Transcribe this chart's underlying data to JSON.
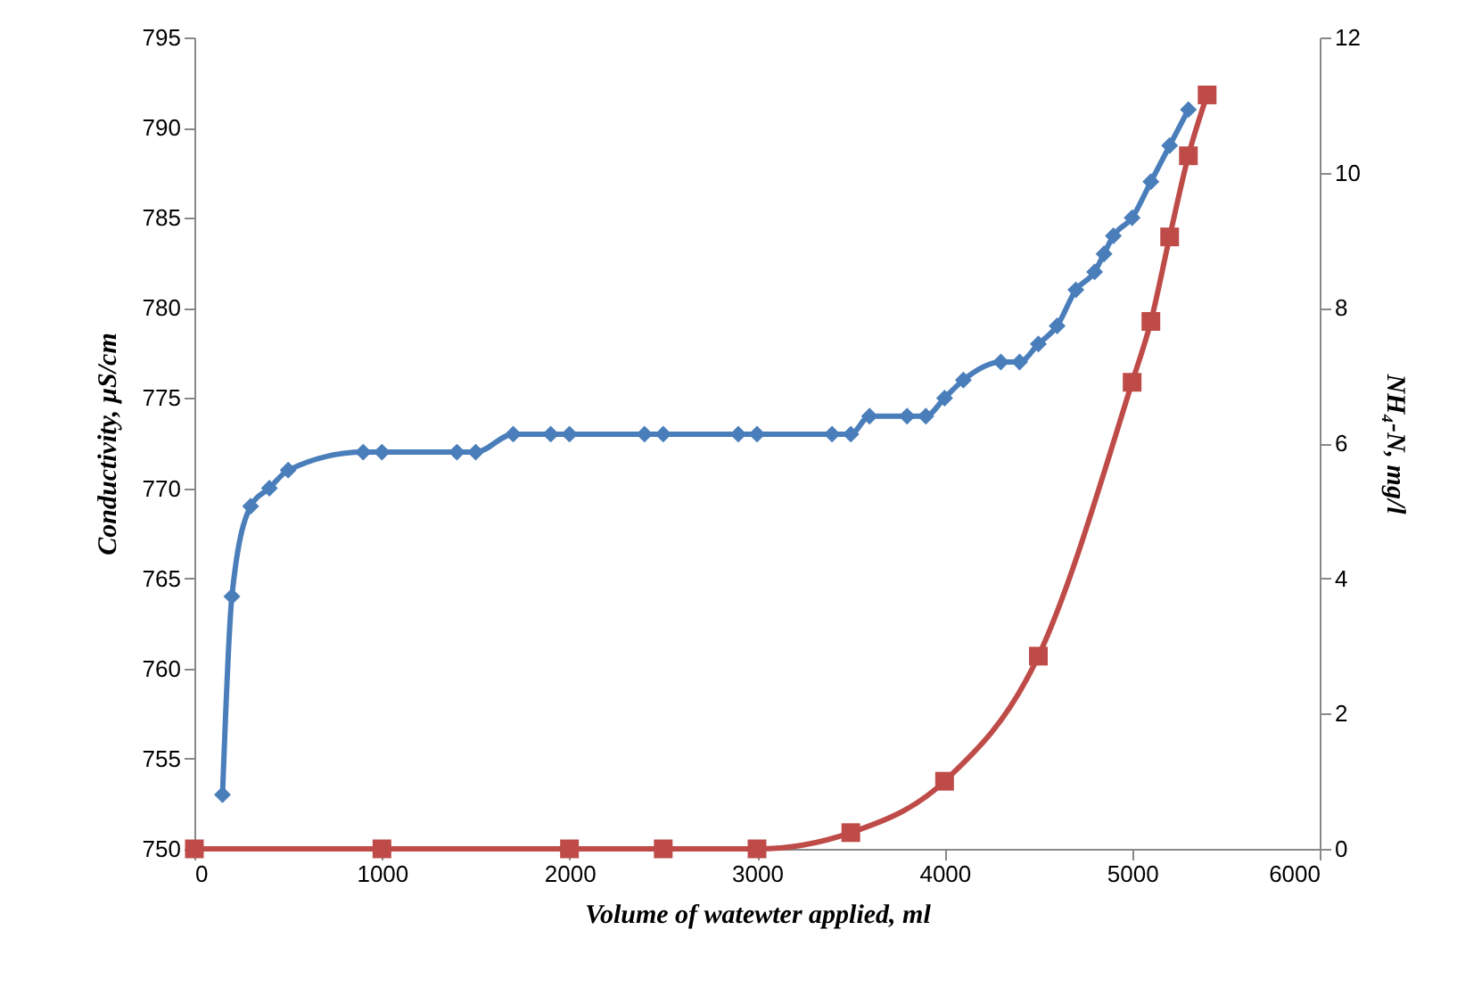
{
  "chart_data": {
    "type": "line",
    "xlabel": "Volume  of watewter applied, ml",
    "ylabel": "Conductivity,  µS/cm",
    "y2label": "NH₄-N, mg/l",
    "xlim": [
      0,
      6000
    ],
    "xticks": [
      0,
      1000,
      2000,
      3000,
      4000,
      5000,
      6000
    ],
    "ylim": [
      750,
      795
    ],
    "yticks": [
      750,
      755,
      760,
      765,
      770,
      775,
      780,
      785,
      790,
      795
    ],
    "y2lim": [
      0,
      12
    ],
    "y2ticks": [
      0,
      2,
      4,
      6,
      8,
      10,
      12
    ],
    "grid": false,
    "line_style": "solid",
    "series": [
      {
        "color": "#4a7ebb",
        "marker": "diamond",
        "x": [
          150,
          200,
          300,
          400,
          500,
          900,
          1000,
          1400,
          1500,
          1700,
          1900,
          2000,
          2400,
          2500,
          2900,
          3000,
          3400,
          3500,
          3600,
          3800,
          3900,
          4000,
          4100,
          4300,
          4400,
          4500,
          4600,
          4700,
          4800,
          4850,
          4900,
          5000,
          5100,
          5200,
          5300
        ],
        "values": [
          753,
          764,
          769,
          770,
          771,
          772,
          772,
          772,
          772,
          773,
          773,
          773,
          773,
          773,
          773,
          773,
          773,
          773,
          774,
          774,
          774,
          775,
          776,
          777,
          777,
          778,
          779,
          781,
          782,
          783,
          784,
          785,
          787,
          789,
          791
        ]
      },
      {
        "color": "#be4b48",
        "marker": "square",
        "axis": "y2",
        "x": [
          0,
          1000,
          2000,
          2500,
          3000,
          3500,
          4000,
          4500,
          5000,
          5100,
          5200,
          5300,
          5400
        ],
        "values": [
          0,
          0,
          0,
          0,
          0,
          0.24,
          1.0,
          2.85,
          6.9,
          7.8,
          9.05,
          10.25,
          11.15
        ]
      }
    ]
  }
}
